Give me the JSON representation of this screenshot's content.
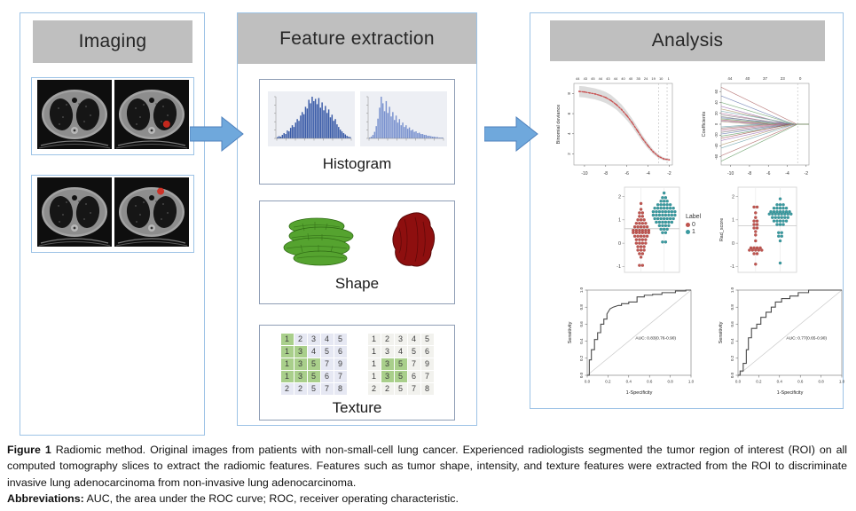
{
  "imaging": {
    "title": "Imaging",
    "ct_rows": [
      {
        "images": [
          {
            "tumor": false
          },
          {
            "tumor": true,
            "tx": 0.7,
            "ty": 0.64
          }
        ]
      },
      {
        "images": [
          {
            "tumor": false
          },
          {
            "tumor": true,
            "tx": 0.62,
            "ty": 0.2
          }
        ]
      }
    ]
  },
  "feature_extraction": {
    "title": "Feature extraction",
    "histogram_label": "Histogram",
    "shape_label": "Shape",
    "texture_label": "Texture"
  },
  "analysis": {
    "title": "Analysis"
  },
  "texture_grids": {
    "highlight_color": "#a9cf8b",
    "number_color": "#3d3d3d",
    "left": {
      "cell_bg": "#e6e8f3",
      "values": [
        [
          1,
          2,
          3,
          4,
          5
        ],
        [
          1,
          3,
          4,
          5,
          6
        ],
        [
          1,
          3,
          5,
          7,
          9
        ],
        [
          1,
          3,
          5,
          6,
          7
        ],
        [
          2,
          2,
          5,
          7,
          8
        ]
      ],
      "highlights": [
        [
          0,
          0
        ],
        [
          1,
          0
        ],
        [
          1,
          1
        ],
        [
          2,
          0
        ],
        [
          2,
          1
        ],
        [
          2,
          2
        ],
        [
          3,
          0
        ],
        [
          3,
          1
        ],
        [
          3,
          2
        ]
      ]
    },
    "right": {
      "cell_bg": "#f2f2ee",
      "values": [
        [
          1,
          2,
          3,
          4,
          5
        ],
        [
          1,
          3,
          4,
          5,
          6
        ],
        [
          1,
          3,
          5,
          7,
          9
        ],
        [
          1,
          3,
          5,
          6,
          7
        ],
        [
          2,
          2,
          5,
          7,
          8
        ]
      ],
      "highlights": [
        [
          2,
          1
        ],
        [
          2,
          2
        ],
        [
          3,
          1
        ],
        [
          3,
          2
        ]
      ]
    }
  },
  "caption": {
    "figure_label": "Figure 1",
    "body": " Radiomic method. Original images from patients with non-small-cell lung cancer. Experienced radiologists segmented the tumor region of interest (ROI) on all computed tomography slices to extract the radiomic features. Features such as tumor shape, intensity, and texture features were extracted from the ROI to discriminate invasive lung adenocarcinoma from non-invasive lung adenocarcinoma.",
    "abbrev_label": "Abbreviations:",
    "abbrev_body": " AUC, the area under the ROC curve; ROC, receiver operating characteristic."
  },
  "colors": {
    "panel_border": "#9dc3e6",
    "header_bg": "#bfbfbf",
    "arrow_fill": "#6fa8dc",
    "arrow_stroke": "#4f81bd",
    "inner_box_border": "#8e9db5",
    "hist_left_bar": "#3b5ca8",
    "hist_right_bar": "#7b93cf",
    "hist_bg": "#edeff4",
    "shape_green": "#55a32f",
    "shape_green_dark": "#2f6b14",
    "shape_red": "#8e0f0f",
    "shape_red_dark": "#570707",
    "deviance_curve": "#c94f4f",
    "swarm_red": "#bf544f",
    "swarm_teal": "#3a9aa0",
    "roc_line": "#4a4a4a"
  },
  "chart_data": [
    {
      "id": "histogram-left",
      "type": "bar",
      "values": [
        3,
        5,
        4,
        8,
        12,
        10,
        18,
        16,
        24,
        30,
        26,
        36,
        44,
        40,
        52,
        60,
        55,
        72,
        68,
        88,
        80,
        95,
        85,
        90,
        78,
        92,
        70,
        82,
        64,
        74,
        58,
        66,
        48,
        54,
        40,
        44,
        32,
        26,
        20,
        16,
        12,
        9,
        6,
        4,
        3
      ]
    },
    {
      "id": "histogram-right",
      "type": "bar",
      "values": [
        2,
        4,
        8,
        15,
        28,
        45,
        70,
        95,
        80,
        62,
        85,
        58,
        72,
        50,
        60,
        42,
        52,
        36,
        44,
        30,
        36,
        26,
        30,
        22,
        25,
        18,
        20,
        15,
        16,
        12,
        13,
        10,
        10,
        8,
        8,
        6,
        6,
        5,
        4,
        4,
        3,
        3,
        2,
        2,
        2
      ]
    },
    {
      "id": "lasso-cv-deviance",
      "type": "line",
      "ylabel": "Binomial deviance",
      "top_axis": [
        "44",
        "43",
        "45",
        "44",
        "43",
        "44",
        "40",
        "40",
        "35",
        "24",
        "19",
        "10",
        "1"
      ],
      "x_ticks": [
        -10,
        -8,
        -6,
        -4,
        -2
      ],
      "y_ticks": [
        2,
        4,
        6,
        8
      ],
      "x_range": [
        -11,
        -1.7
      ],
      "y_range": [
        0.9,
        9
      ],
      "x": [
        -10.5,
        -10,
        -9.5,
        -9,
        -8.5,
        -8,
        -7.5,
        -7,
        -6.5,
        -6,
        -5.5,
        -5,
        -4.5,
        -4,
        -3.5,
        -3,
        -2.5,
        -2
      ],
      "y": [
        8.2,
        8.15,
        8.05,
        7.95,
        7.8,
        7.6,
        7.3,
        6.9,
        6.4,
        5.8,
        5.1,
        4.3,
        3.5,
        2.8,
        2.2,
        1.75,
        1.5,
        1.42
      ],
      "ci": [
        0.55,
        0.55,
        0.55,
        0.55,
        0.55,
        0.55,
        0.55,
        0.5,
        0.5,
        0.45,
        0.4,
        0.38,
        0.33,
        0.28,
        0.22,
        0.18,
        0.14,
        0.12
      ],
      "vlines": [
        -3.0,
        -2.2
      ]
    },
    {
      "id": "lasso-coefficient-paths",
      "type": "line",
      "ylabel": "Coefficients",
      "top_axis": [
        "44",
        "40",
        "37",
        "23",
        "0"
      ],
      "x_ticks": [
        -10,
        -8,
        -6,
        -4,
        -2
      ],
      "y_ticks": [
        -60,
        -40,
        -20,
        0,
        20,
        40,
        60
      ],
      "x_range": [
        -11,
        -1.7
      ],
      "y_range": [
        -75,
        75
      ],
      "vline": -2.9,
      "palette": [
        "#8c8c8c",
        "#b06a6a",
        "#6a7ab0",
        "#6aa06a",
        "#9a6ab0",
        "#b0986a",
        "#6aa0a8",
        "#b06a9a",
        "#7a7a7a",
        "#a05050"
      ],
      "lines": [
        [
          68,
          -3,
          1
        ],
        [
          52,
          -3.4,
          2
        ],
        [
          40,
          -3.2,
          3
        ],
        [
          33,
          -4,
          4
        ],
        [
          28,
          -3.6,
          5
        ],
        [
          24,
          -3.1,
          6
        ],
        [
          20,
          -4.4,
          7
        ],
        [
          17,
          -3.8,
          0
        ],
        [
          14,
          -5,
          8
        ],
        [
          12,
          -3.3,
          2
        ],
        [
          10,
          -4.6,
          3
        ],
        [
          8,
          -5.6,
          9
        ],
        [
          6,
          -6.4,
          4
        ],
        [
          5,
          -7.5,
          5
        ],
        [
          -5,
          -7,
          6
        ],
        [
          -7,
          -6,
          0
        ],
        [
          -9,
          -5.2,
          1
        ],
        [
          -12,
          -4.5,
          7
        ],
        [
          -15,
          -4,
          8
        ],
        [
          -18,
          -3.6,
          2
        ],
        [
          -22,
          -3.3,
          3
        ],
        [
          -26,
          -3.8,
          9
        ],
        [
          -30,
          -3.1,
          4
        ],
        [
          -38,
          -3.5,
          5
        ],
        [
          -44,
          -3.2,
          6
        ],
        [
          -58,
          -3,
          1
        ],
        [
          -68,
          -2.9,
          3
        ]
      ]
    },
    {
      "id": "rad-score-dotplots",
      "type": "scatter",
      "legend": {
        "title": "Label",
        "items": [
          {
            "label": "0",
            "color": "#bf544f"
          },
          {
            "label": "1",
            "color": "#3a9aa0"
          }
        ]
      },
      "y_ticks": [
        -1,
        0,
        1,
        2
      ],
      "y_range": [
        -1.25,
        2.4
      ],
      "panels": [
        {
          "ylabel": "",
          "cutoff": 0.62,
          "group0": [
            [
              1.7,
              1
            ],
            [
              1.45,
              1
            ],
            [
              1.3,
              2
            ],
            [
              1.15,
              2
            ],
            [
              1,
              3
            ],
            [
              0.85,
              4
            ],
            [
              0.7,
              5
            ],
            [
              0.55,
              6
            ],
            [
              0.45,
              6
            ],
            [
              0.3,
              5
            ],
            [
              0.15,
              4
            ],
            [
              0,
              4
            ],
            [
              -0.15,
              3
            ],
            [
              -0.3,
              3
            ],
            [
              -0.45,
              2
            ],
            [
              -0.6,
              1
            ],
            [
              -0.95,
              2
            ]
          ],
          "group1": [
            [
              2.15,
              1
            ],
            [
              1.95,
              2
            ],
            [
              1.8,
              3
            ],
            [
              1.65,
              5
            ],
            [
              1.5,
              7
            ],
            [
              1.35,
              8
            ],
            [
              1.2,
              8
            ],
            [
              1.05,
              7
            ],
            [
              0.9,
              6
            ],
            [
              0.75,
              4
            ],
            [
              0.6,
              3
            ],
            [
              0.45,
              2
            ],
            [
              0.05,
              2
            ]
          ]
        },
        {
          "ylabel": "Rad_score",
          "cutoff": 0.75,
          "group0": [
            [
              1.55,
              2
            ],
            [
              1.3,
              1
            ],
            [
              1.1,
              1
            ],
            [
              0.95,
              2
            ],
            [
              0.8,
              2
            ],
            [
              0.65,
              2
            ],
            [
              0.5,
              1
            ],
            [
              0.35,
              1
            ],
            [
              0.1,
              1
            ],
            [
              -0.2,
              4
            ],
            [
              -0.3,
              5
            ],
            [
              -0.45,
              2
            ],
            [
              -0.9,
              1
            ]
          ],
          "group1": [
            [
              1.9,
              1
            ],
            [
              1.65,
              3
            ],
            [
              1.5,
              5
            ],
            [
              1.35,
              7
            ],
            [
              1.25,
              8
            ],
            [
              1.1,
              6
            ],
            [
              0.95,
              5
            ],
            [
              0.8,
              3
            ],
            [
              0.45,
              2
            ],
            [
              0.3,
              2
            ],
            [
              0.1,
              1
            ],
            [
              -0.85,
              1
            ]
          ]
        }
      ]
    },
    {
      "id": "roc-training",
      "type": "line",
      "xlabel": "1-Specificity",
      "ylabel": "Sensitivity",
      "annotation": "AUC: 0.83(0.76-0.90)",
      "ticks": [
        0,
        0.2,
        0.4,
        0.6,
        0.8,
        1
      ],
      "points": [
        [
          0,
          0
        ],
        [
          0.02,
          0
        ],
        [
          0.02,
          0.18
        ],
        [
          0.04,
          0.18
        ],
        [
          0.04,
          0.3
        ],
        [
          0.07,
          0.3
        ],
        [
          0.07,
          0.42
        ],
        [
          0.1,
          0.42
        ],
        [
          0.1,
          0.5
        ],
        [
          0.13,
          0.5
        ],
        [
          0.13,
          0.6
        ],
        [
          0.16,
          0.6
        ],
        [
          0.16,
          0.66
        ],
        [
          0.19,
          0.66
        ],
        [
          0.19,
          0.72
        ],
        [
          0.22,
          0.78
        ],
        [
          0.25,
          0.8
        ],
        [
          0.3,
          0.82
        ],
        [
          0.33,
          0.82
        ],
        [
          0.33,
          0.84
        ],
        [
          0.4,
          0.84
        ],
        [
          0.4,
          0.86
        ],
        [
          0.48,
          0.86
        ],
        [
          0.48,
          0.92
        ],
        [
          0.55,
          0.92
        ],
        [
          0.55,
          0.94
        ],
        [
          0.63,
          0.94
        ],
        [
          0.63,
          0.95
        ],
        [
          0.72,
          0.95
        ],
        [
          0.72,
          0.97
        ],
        [
          0.85,
          0.97
        ],
        [
          0.85,
          0.99
        ],
        [
          0.95,
          0.99
        ],
        [
          0.95,
          1
        ],
        [
          1,
          1
        ]
      ]
    },
    {
      "id": "roc-validation",
      "type": "line",
      "xlabel": "1-Specificity",
      "ylabel": "Sensitivity",
      "annotation": "AUC: 0.77(0.65-0.90)",
      "ticks": [
        0,
        0.2,
        0.4,
        0.6,
        0.8,
        1
      ],
      "points": [
        [
          0,
          0
        ],
        [
          0.02,
          0
        ],
        [
          0.02,
          0.05
        ],
        [
          0.05,
          0.05
        ],
        [
          0.05,
          0.14
        ],
        [
          0.08,
          0.14
        ],
        [
          0.08,
          0.3
        ],
        [
          0.1,
          0.3
        ],
        [
          0.1,
          0.44
        ],
        [
          0.13,
          0.44
        ],
        [
          0.13,
          0.55
        ],
        [
          0.18,
          0.55
        ],
        [
          0.18,
          0.6
        ],
        [
          0.22,
          0.6
        ],
        [
          0.22,
          0.68
        ],
        [
          0.27,
          0.68
        ],
        [
          0.27,
          0.74
        ],
        [
          0.32,
          0.74
        ],
        [
          0.32,
          0.8
        ],
        [
          0.36,
          0.8
        ],
        [
          0.36,
          0.86
        ],
        [
          0.42,
          0.86
        ],
        [
          0.42,
          0.9
        ],
        [
          0.5,
          0.9
        ],
        [
          0.5,
          0.93
        ],
        [
          0.58,
          0.93
        ],
        [
          0.58,
          0.97
        ],
        [
          0.68,
          0.97
        ],
        [
          0.68,
          1
        ],
        [
          1,
          1
        ]
      ]
    }
  ]
}
